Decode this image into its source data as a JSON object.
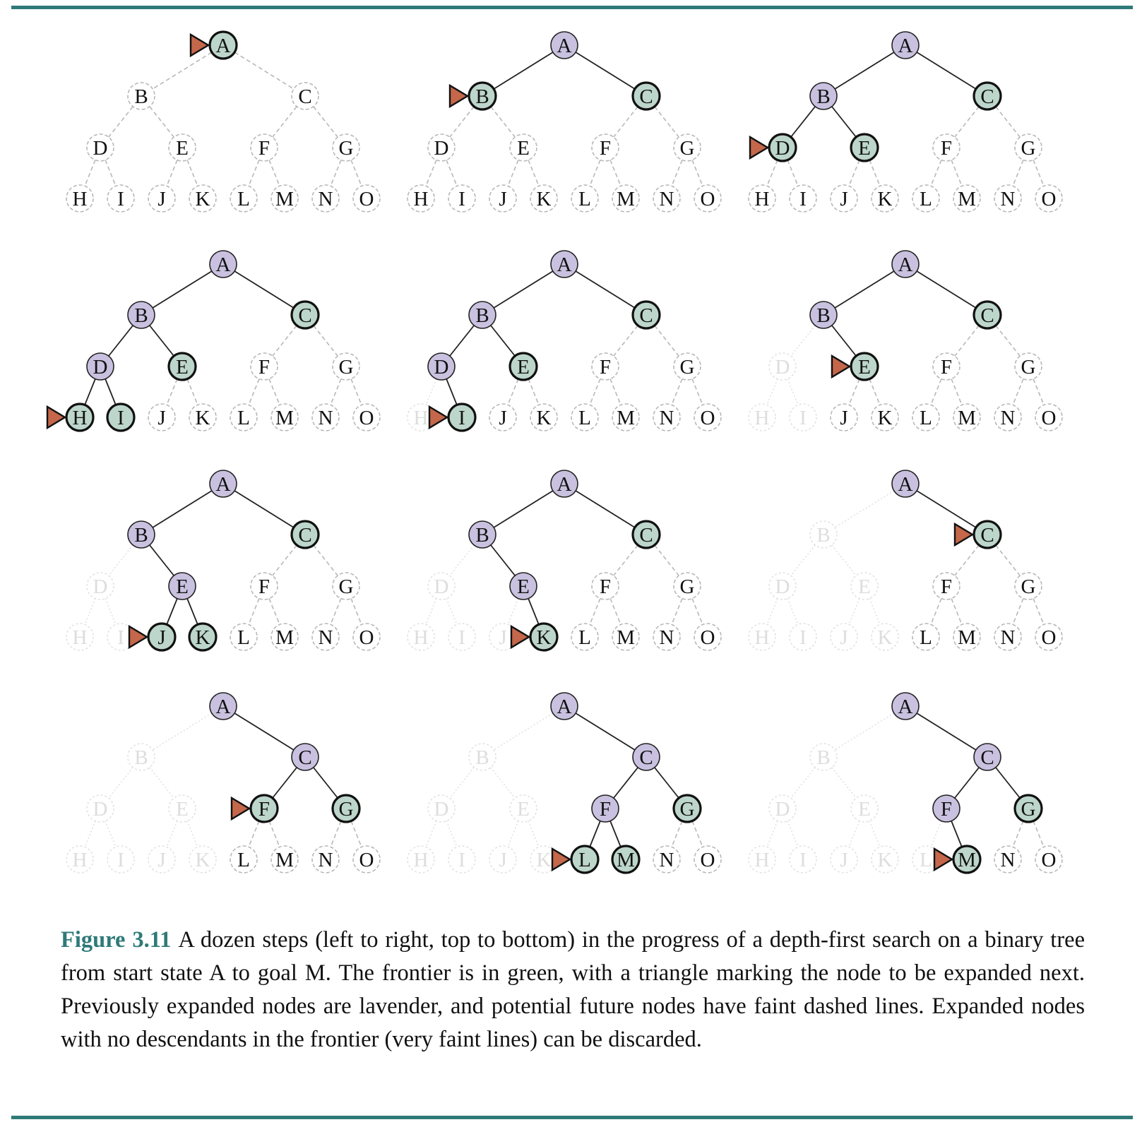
{
  "figure": {
    "label": "Figure 3.11",
    "caption": "A dozen steps (left to right, top to bottom) in the progress of a depth-first search on a binary tree from start state A to goal M. The frontier is in green, with a triangle marking the node to be expanded next. Previously expanded nodes are lavender, and potential future nodes have faint dashed lines. Expanded nodes with no descendants in the frontier (very faint lines) can be discarded."
  },
  "colors": {
    "rule": "#2e7a78",
    "frontier": "#bdd6cc",
    "expanded": "#c9c1df",
    "marker": "#c4674a",
    "edge": "#222222",
    "future": "#b8b8b8",
    "discarded": "#e2e2e2"
  },
  "tree": {
    "nodes": [
      "A",
      "B",
      "C",
      "D",
      "E",
      "F",
      "G",
      "H",
      "I",
      "J",
      "K",
      "L",
      "M",
      "N",
      "O"
    ],
    "edges": [
      [
        "A",
        "B"
      ],
      [
        "A",
        "C"
      ],
      [
        "B",
        "D"
      ],
      [
        "B",
        "E"
      ],
      [
        "C",
        "F"
      ],
      [
        "C",
        "G"
      ],
      [
        "D",
        "H"
      ],
      [
        "D",
        "I"
      ],
      [
        "E",
        "J"
      ],
      [
        "E",
        "K"
      ],
      [
        "F",
        "L"
      ],
      [
        "F",
        "M"
      ],
      [
        "G",
        "N"
      ],
      [
        "G",
        "O"
      ]
    ]
  },
  "panels": [
    {
      "step": 1,
      "expanded": [],
      "frontier": [
        "A"
      ],
      "discarded": [],
      "marker": "A"
    },
    {
      "step": 2,
      "expanded": [
        "A"
      ],
      "frontier": [
        "B",
        "C"
      ],
      "discarded": [],
      "marker": "B"
    },
    {
      "step": 3,
      "expanded": [
        "A",
        "B"
      ],
      "frontier": [
        "C",
        "D",
        "E"
      ],
      "discarded": [],
      "marker": "D"
    },
    {
      "step": 4,
      "expanded": [
        "A",
        "B",
        "D"
      ],
      "frontier": [
        "C",
        "E",
        "H",
        "I"
      ],
      "discarded": [],
      "marker": "H"
    },
    {
      "step": 5,
      "expanded": [
        "A",
        "B",
        "D"
      ],
      "frontier": [
        "C",
        "E",
        "I"
      ],
      "discarded": [
        "H"
      ],
      "marker": "I"
    },
    {
      "step": 6,
      "expanded": [
        "A",
        "B"
      ],
      "frontier": [
        "C",
        "E"
      ],
      "discarded": [
        "D",
        "H",
        "I"
      ],
      "marker": "E"
    },
    {
      "step": 7,
      "expanded": [
        "A",
        "B",
        "E"
      ],
      "frontier": [
        "C",
        "J",
        "K"
      ],
      "discarded": [
        "D",
        "H",
        "I"
      ],
      "marker": "J"
    },
    {
      "step": 8,
      "expanded": [
        "A",
        "B",
        "E"
      ],
      "frontier": [
        "C",
        "K"
      ],
      "discarded": [
        "D",
        "H",
        "I",
        "J"
      ],
      "marker": "K"
    },
    {
      "step": 9,
      "expanded": [
        "A"
      ],
      "frontier": [
        "C"
      ],
      "discarded": [
        "B",
        "D",
        "E",
        "H",
        "I",
        "J",
        "K"
      ],
      "marker": "C"
    },
    {
      "step": 10,
      "expanded": [
        "A",
        "C"
      ],
      "frontier": [
        "F",
        "G"
      ],
      "discarded": [
        "B",
        "D",
        "E",
        "H",
        "I",
        "J",
        "K"
      ],
      "marker": "F"
    },
    {
      "step": 11,
      "expanded": [
        "A",
        "C",
        "F"
      ],
      "frontier": [
        "G",
        "L",
        "M"
      ],
      "discarded": [
        "B",
        "D",
        "E",
        "H",
        "I",
        "J",
        "K"
      ],
      "marker": "L"
    },
    {
      "step": 12,
      "expanded": [
        "A",
        "C",
        "F"
      ],
      "frontier": [
        "G",
        "M"
      ],
      "discarded": [
        "B",
        "D",
        "E",
        "H",
        "I",
        "J",
        "K",
        "L"
      ],
      "marker": "M"
    }
  ]
}
